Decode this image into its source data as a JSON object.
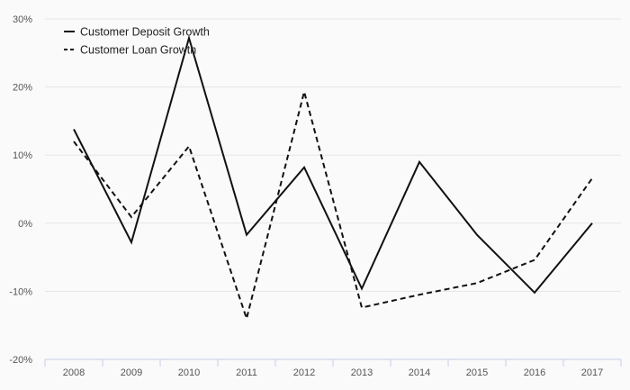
{
  "chart_data": {
    "type": "line",
    "title": "",
    "xlabel": "",
    "ylabel": "",
    "x": [
      "2008",
      "2009",
      "2010",
      "2011",
      "2012",
      "2013",
      "2014",
      "2015",
      "2016",
      "2017"
    ],
    "ylim": [
      -20,
      30
    ],
    "yticks": [
      30,
      20,
      10,
      0,
      -10,
      -20
    ],
    "ytick_labels": [
      "30%",
      "20%",
      "10%",
      "0%",
      "-10%",
      "-20%"
    ],
    "grid": true,
    "legend_position": "top-left",
    "series": [
      {
        "name": "Customer Deposit Growth",
        "style": "solid",
        "color": "#111111",
        "values": [
          13.8,
          -2.8,
          27.2,
          -1.7,
          8.2,
          -9.6,
          9.0,
          -1.7,
          -10.2,
          0.0
        ]
      },
      {
        "name": "Customer Loan Growth",
        "style": "dashed",
        "color": "#111111",
        "values": [
          12.0,
          0.9,
          11.3,
          -14.0,
          19.3,
          -12.4,
          -10.5,
          -8.8,
          -5.4,
          6.6
        ]
      }
    ]
  }
}
